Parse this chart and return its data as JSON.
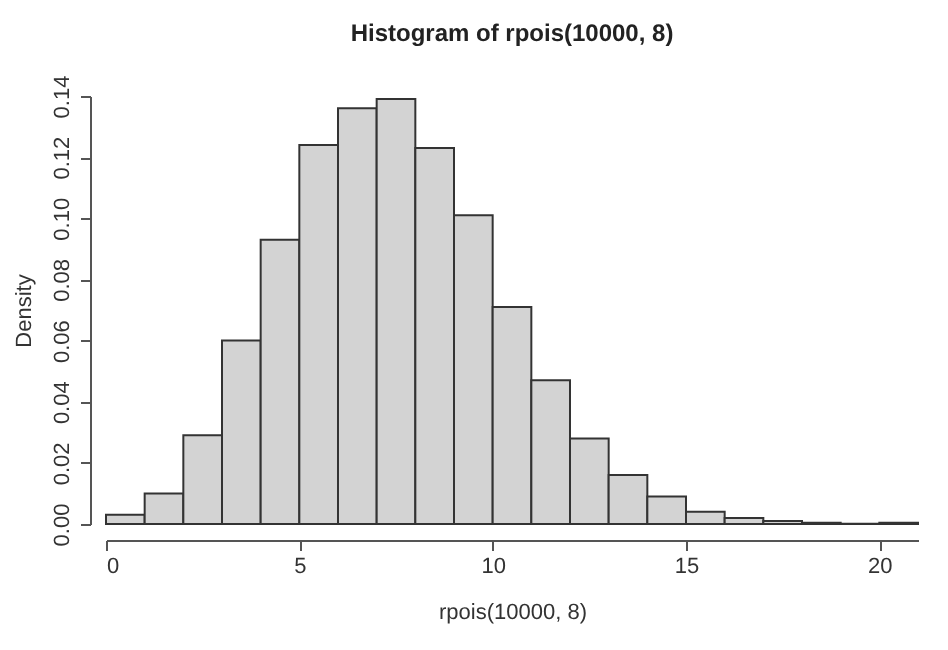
{
  "chart_data": {
    "type": "histogram",
    "title": "Histogram of rpois(10000, 8)",
    "xlabel": "rpois(10000, 8)",
    "ylabel": "Density",
    "bins": [
      0,
      1,
      2,
      3,
      4,
      5,
      6,
      7,
      8,
      9,
      10,
      11,
      12,
      13,
      14,
      15,
      16,
      17,
      18,
      19,
      20,
      21
    ],
    "values": [
      0.003,
      0.01,
      0.029,
      0.06,
      0.093,
      0.124,
      0.136,
      0.139,
      0.123,
      0.101,
      0.071,
      0.047,
      0.028,
      0.016,
      0.009,
      0.004,
      0.002,
      0.001,
      0.0004,
      0.0001,
      0.0004
    ],
    "color": "#d3d3d3",
    "xlim": [
      0,
      21
    ],
    "xticks": [
      0,
      5,
      10,
      15,
      20
    ],
    "ylim": [
      0,
      0.14
    ],
    "yticks": [
      {
        "value": 0,
        "label": "0.00"
      },
      {
        "value": 0.02,
        "label": "0.02"
      },
      {
        "value": 0.04,
        "label": "0.04"
      },
      {
        "value": 0.06,
        "label": "0.06"
      },
      {
        "value": 0.08,
        "label": "0.08"
      },
      {
        "value": 0.1,
        "label": "0.10"
      },
      {
        "value": 0.12,
        "label": "0.12"
      },
      {
        "value": 0.14,
        "label": "0.14"
      }
    ]
  }
}
